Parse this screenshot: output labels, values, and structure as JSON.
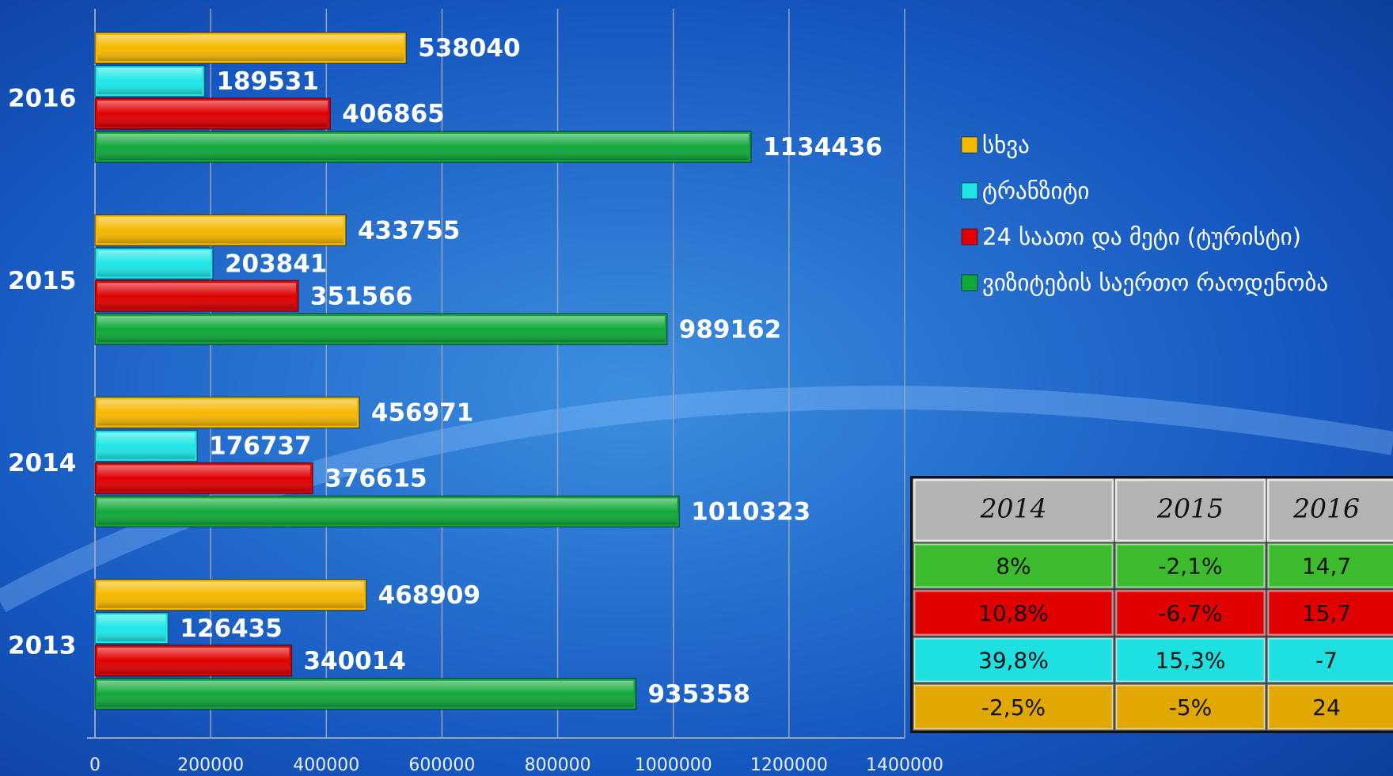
{
  "chart_data": {
    "type": "barh",
    "categories": [
      "2016",
      "2015",
      "2014",
      "2013"
    ],
    "series": [
      {
        "name": "სხვა",
        "color": "#f5b800",
        "values": [
          538040,
          433755,
          456971,
          468909
        ]
      },
      {
        "name": "ტრანზიტი",
        "color": "#1ee6e6",
        "values": [
          189531,
          203841,
          176737,
          126435
        ]
      },
      {
        "name": "24 საათი და მეტი (ტურისტი)",
        "color": "#e00000",
        "values": [
          406865,
          351566,
          376615,
          340014
        ]
      },
      {
        "name": "ვიზიტების საერთო რაოდენობა",
        "color": "#11a83a",
        "values": [
          1134436,
          989162,
          1010323,
          935358
        ]
      }
    ],
    "xlim": [
      0,
      1400000
    ],
    "xticks": [
      0,
      200000,
      400000,
      600000,
      800000,
      1000000,
      1200000,
      1400000
    ],
    "grid": true,
    "legend": "right"
  },
  "table": {
    "header": [
      "2014",
      "2015",
      "2016"
    ],
    "rows": [
      [
        "8%",
        "-2,1%",
        "14,7"
      ],
      [
        "10,8%",
        "-6,7%",
        "15,7"
      ],
      [
        "39,8%",
        "15,3%",
        "-7"
      ],
      [
        "-2,5%",
        "-5%",
        "24"
      ]
    ]
  }
}
